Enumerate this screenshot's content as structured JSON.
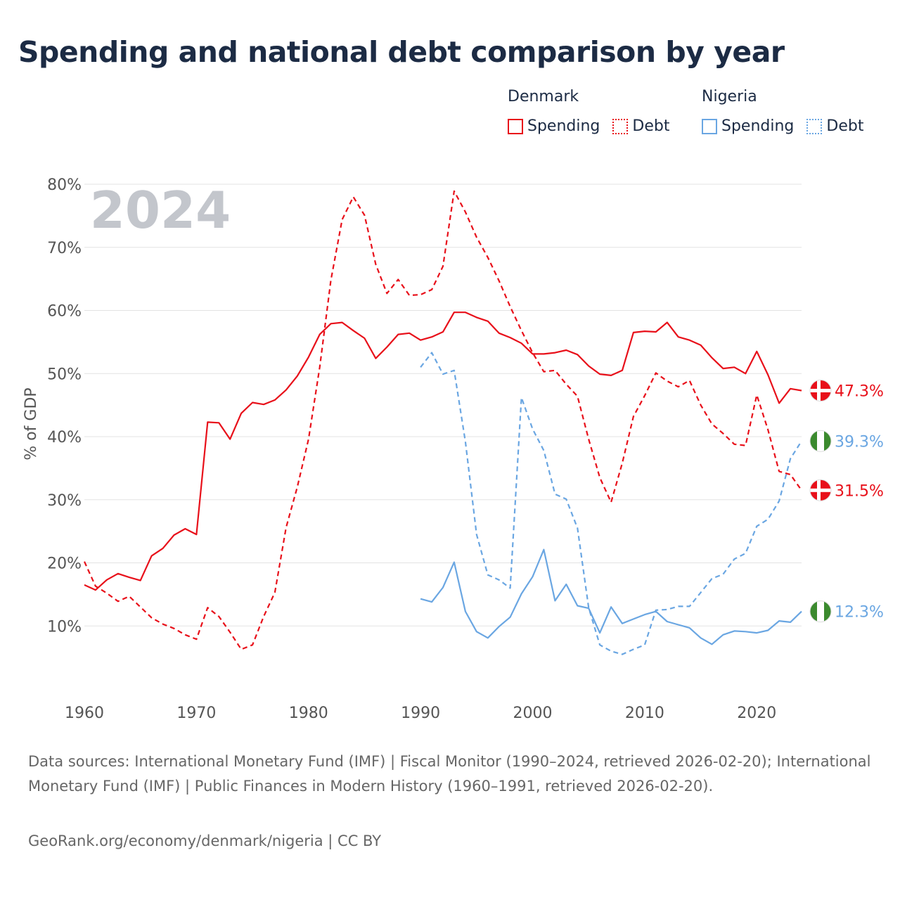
{
  "title": "Spending and national debt comparison by year",
  "legend": {
    "groups": [
      {
        "country": "Denmark",
        "color": "#e8101a",
        "items": [
          "Spending",
          "Debt"
        ]
      },
      {
        "country": "Nigeria",
        "color": "#6aa6e2",
        "items": [
          "Spending",
          "Debt"
        ]
      }
    ]
  },
  "sources": "Data sources: International Monetary Fund (IMF) | Fiscal Monitor (1990–2024, retrieved 2026-02-20); International Monetary Fund (IMF) | Public Finances in Modern History (1960–1991, retrieved 2026-02-20).",
  "credit": "GeoRank.org/economy/denmark/nigeria | CC BY",
  "chart_data": {
    "type": "line",
    "title": "Spending and national debt comparison by year",
    "year_label": "2024",
    "ylabel": "% of GDP",
    "xlabel": "",
    "xlim": [
      1960,
      2024
    ],
    "ylim": [
      0,
      80
    ],
    "x_ticks": [
      1960,
      1970,
      1980,
      1990,
      2000,
      2010,
      2020
    ],
    "y_ticks": [
      10,
      20,
      30,
      40,
      50,
      60,
      70,
      80
    ],
    "y_tick_labels": [
      "10%",
      "20%",
      "30%",
      "40%",
      "50%",
      "60%",
      "70%",
      "80%"
    ],
    "grid": true,
    "series": [
      {
        "name": "Denmark Spending",
        "country": "Denmark",
        "color": "#e8101a",
        "dashed": false,
        "flag": "denmark",
        "end_label": "47.3%",
        "start_year": 1960,
        "values": [
          16.5,
          15.7,
          17.3,
          18.3,
          17.7,
          17.2,
          21.1,
          22.3,
          24.4,
          25.4,
          24.5,
          42.3,
          42.2,
          39.6,
          43.7,
          45.4,
          45.1,
          45.8,
          47.4,
          49.6,
          52.6,
          56.2,
          57.9,
          58.1,
          56.8,
          55.6,
          52.4,
          54.2,
          56.2,
          56.4,
          55.3,
          55.8,
          56.6,
          59.7,
          59.7,
          58.9,
          58.3,
          56.4,
          55.7,
          54.8,
          53.1,
          53.1,
          53.3,
          53.7,
          53.0,
          51.2,
          49.9,
          49.7,
          50.5,
          56.5,
          56.7,
          56.6,
          58.1,
          55.8,
          55.3,
          54.5,
          52.5,
          50.8,
          51.0,
          50.0,
          53.5,
          49.8,
          45.3,
          47.6,
          47.3
        ]
      },
      {
        "name": "Denmark Debt",
        "country": "Denmark",
        "color": "#e8101a",
        "dashed": true,
        "flag": "denmark",
        "end_label": "31.5%",
        "start_year": 1960,
        "values": [
          20.2,
          16.3,
          15.2,
          13.9,
          14.7,
          13.0,
          11.3,
          10.3,
          9.6,
          8.6,
          7.9,
          12.9,
          11.5,
          9.0,
          6.3,
          7.0,
          11.5,
          15.3,
          25.6,
          32.0,
          39.6,
          51.0,
          64.8,
          74.4,
          78.0,
          75.1,
          67.3,
          62.7,
          64.9,
          62.4,
          62.5,
          63.3,
          67.0,
          78.9,
          75.6,
          71.6,
          68.4,
          64.7,
          60.6,
          56.8,
          53.3,
          50.3,
          50.5,
          48.3,
          46.4,
          39.6,
          33.5,
          29.6,
          35.8,
          43.2,
          46.5,
          50.1,
          48.8,
          47.9,
          48.9,
          45.0,
          42.0,
          40.5,
          38.8,
          38.6,
          46.6,
          41.1,
          34.5,
          34.0,
          31.5
        ]
      },
      {
        "name": "Nigeria Spending",
        "country": "Nigeria",
        "color": "#6aa6e2",
        "dashed": false,
        "flag": "nigeria",
        "end_label": "12.3%",
        "start_year": 1990,
        "values": [
          14.3,
          13.8,
          16.1,
          20.1,
          12.3,
          9.1,
          8.1,
          9.9,
          11.4,
          15.1,
          17.8,
          22.1,
          14.0,
          16.6,
          13.2,
          12.8,
          8.9,
          13.0,
          10.4,
          11.1,
          11.8,
          12.3,
          10.7,
          10.2,
          9.7,
          8.1,
          7.1,
          8.6,
          9.2,
          9.1,
          8.9,
          9.3,
          10.8,
          10.6,
          12.3
        ]
      },
      {
        "name": "Nigeria Debt",
        "country": "Nigeria",
        "color": "#6aa6e2",
        "dashed": true,
        "flag": "nigeria",
        "end_label": "39.3%",
        "start_year": 1990,
        "values": [
          51.0,
          53.3,
          49.9,
          50.5,
          39.2,
          24.5,
          18.1,
          17.3,
          16.0,
          46.2,
          41.2,
          37.8,
          30.9,
          30.1,
          25.5,
          12.9,
          7.0,
          6.0,
          5.5,
          6.3,
          7.0,
          12.5,
          12.6,
          13.1,
          13.1,
          15.3,
          17.5,
          18.2,
          20.6,
          21.5,
          25.8,
          26.9,
          29.8,
          36.5,
          39.3
        ]
      }
    ]
  }
}
